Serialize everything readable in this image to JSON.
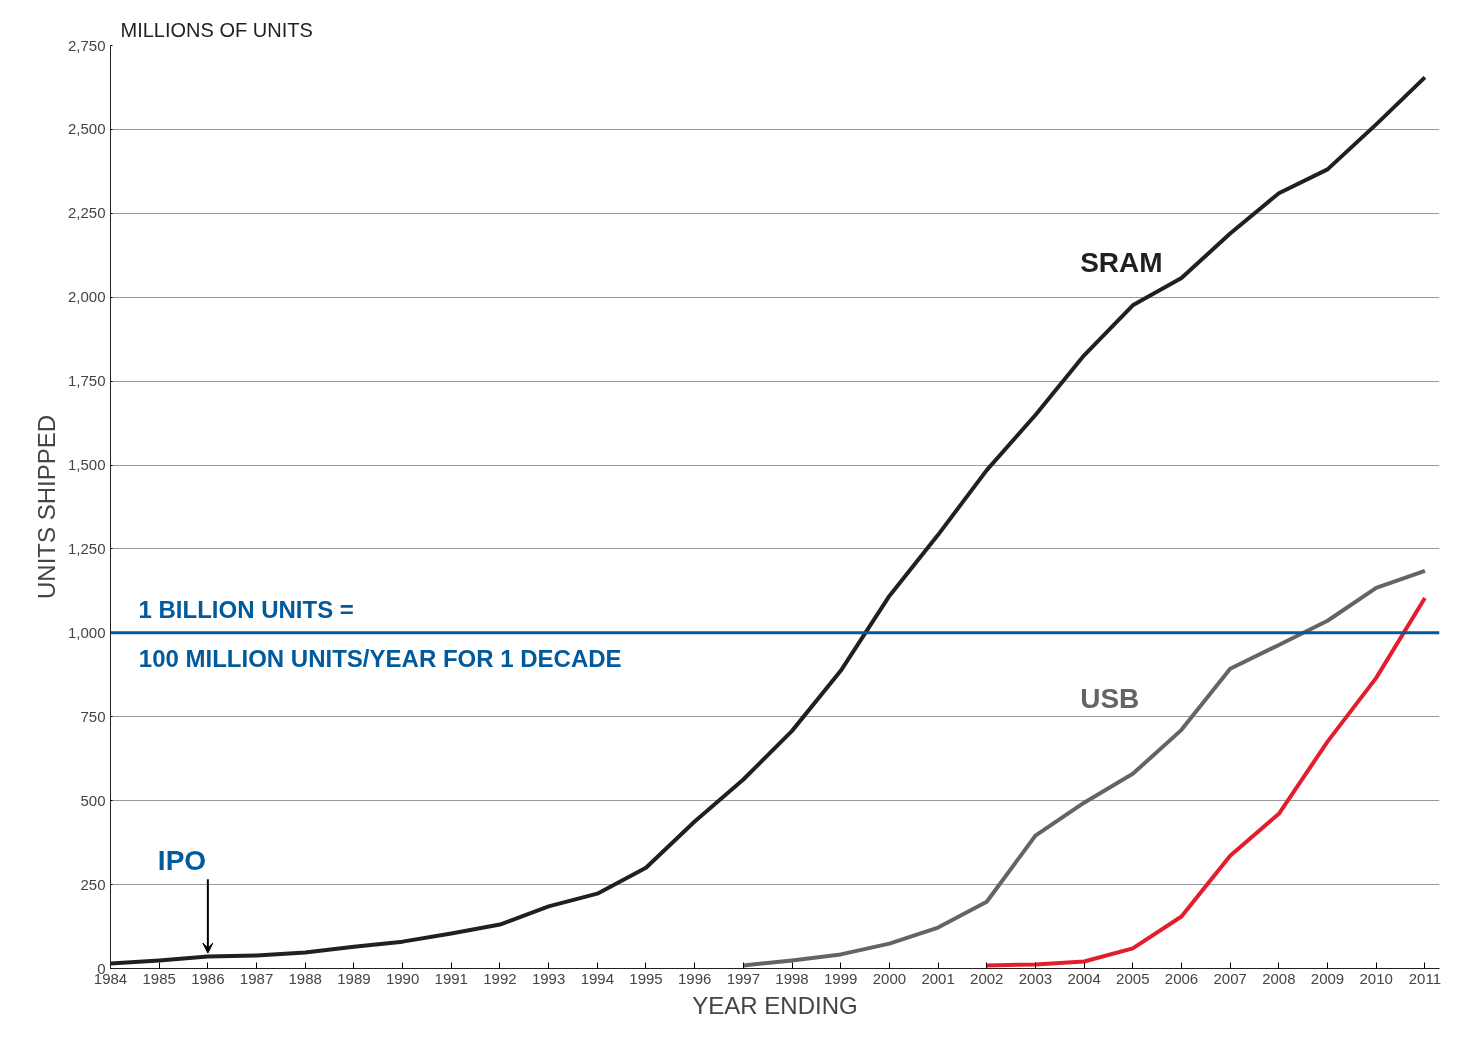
{
  "chart_data": {
    "type": "line",
    "title": "MILLIONS OF UNITS",
    "xlabel": "YEAR ENDING",
    "ylabel": "UNITS SHIPPED",
    "x": [
      1984,
      1985,
      1986,
      1987,
      1988,
      1989,
      1990,
      1991,
      1992,
      1993,
      1994,
      1995,
      1996,
      1997,
      1998,
      1999,
      2000,
      2001,
      2002,
      2003,
      2004,
      2005,
      2006,
      2007,
      2008,
      2009,
      2010,
      2011
    ],
    "series": [
      {
        "name": "SRAM",
        "color": "#231f20",
        "values": [
          15,
          24,
          36,
          39,
          48,
          65,
          80,
          104,
          131,
          185,
          223,
          300,
          438,
          563,
          708,
          887,
          1110,
          1292,
          1485,
          1649,
          1827,
          1976,
          2057,
          2190,
          2310,
          2381,
          2515,
          2655
        ]
      },
      {
        "name": "USB",
        "color": "#646464",
        "x": [
          1997,
          1998,
          1999,
          2000,
          2001,
          2002,
          2003,
          2004,
          2005,
          2006,
          2007,
          2008,
          2009,
          2010,
          2011
        ],
        "values": [
          9,
          24,
          42,
          74,
          122,
          199,
          396,
          494,
          580,
          711,
          893,
          964,
          1036,
          1134,
          1185
        ]
      },
      {
        "color": "#e31e2c",
        "x": [
          2002,
          2003,
          2004,
          2005,
          2006,
          2007,
          2008,
          2009,
          2010,
          2011
        ],
        "values": [
          9,
          12,
          21,
          60,
          155,
          336,
          461,
          676,
          866,
          1104
        ]
      }
    ],
    "xlim": [
      1984,
      2011.3
    ],
    "ylim": [
      0,
      2750
    ],
    "xticks": [
      1984,
      1985,
      1986,
      1987,
      1988,
      1989,
      1990,
      1991,
      1992,
      1993,
      1994,
      1995,
      1996,
      1997,
      1998,
      1999,
      2000,
      2001,
      2002,
      2003,
      2004,
      2005,
      2006,
      2007,
      2008,
      2009,
      2010,
      2011
    ],
    "yticks": [
      {
        "value": 0,
        "label": "0"
      },
      {
        "value": 250,
        "label": "250"
      },
      {
        "value": 500,
        "label": "500"
      },
      {
        "value": 750,
        "label": "750"
      },
      {
        "value": 1000,
        "label": "1,000"
      },
      {
        "value": 1250,
        "label": "1,250"
      },
      {
        "value": 1500,
        "label": "1,500"
      },
      {
        "value": 1750,
        "label": "1,750"
      },
      {
        "value": 2000,
        "label": "2,000"
      },
      {
        "value": 2250,
        "label": "2,250"
      },
      {
        "value": 2500,
        "label": "2,500"
      },
      {
        "value": 2750,
        "label": "2,750"
      }
    ],
    "grid": "y",
    "legend": false,
    "marker": "none",
    "line_style": "solid",
    "ref_lines": [
      {
        "axis": "y",
        "value": 1000,
        "label": "1 BILLION UNITS =",
        "color": "#005a9c"
      }
    ],
    "annotations": [
      {
        "text": "100 MILLION UNITS/YEAR FOR 1 DECADE",
        "x": 1984.5,
        "y": 1000
      },
      {
        "text": "IPO",
        "x": 1986,
        "y": 36
      }
    ]
  }
}
